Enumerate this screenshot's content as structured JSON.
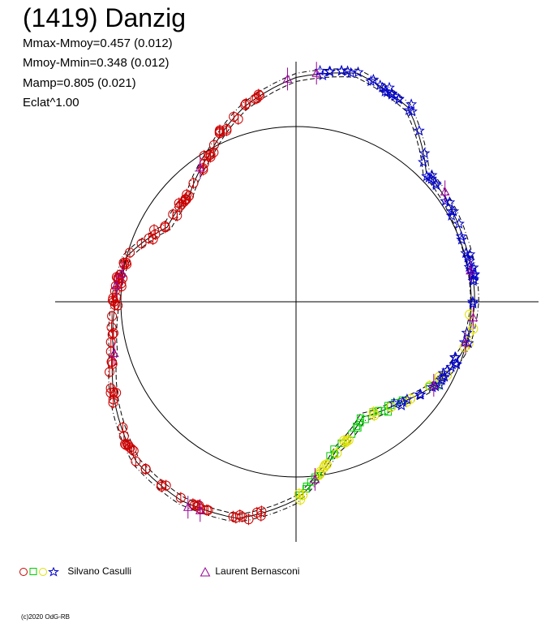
{
  "title": "(1419) Danzig",
  "stats": [
    "Mmax-Mmoy=0.457 (0.012)",
    "Mmoy-Mmin=0.348 (0.012)",
    "Mamp=0.805 (0.021)",
    "Eclat^1.00"
  ],
  "legend": [
    {
      "label": "Silvano Casulli",
      "symbols": [
        "circle",
        "square",
        "circle",
        "star"
      ],
      "colors": [
        "#cc0000",
        "#00cc00",
        "#e0e000",
        "#0000cc"
      ]
    },
    {
      "label": "Laurent Bernasconi",
      "symbols": [
        "triangle"
      ],
      "colors": [
        "#990099"
      ]
    }
  ],
  "copyright": "(c)2020 OdG-RB",
  "chart_data": {
    "type": "scatter",
    "coordinate_system": "polar",
    "angle_unit": "rotational phase (0-1)",
    "radius_unit": "magnitude (reference circle r = 1)",
    "reference_radius": 1.0,
    "series": [
      {
        "observer": "Silvano Casulli",
        "marker": "circle",
        "color": "#cc0000",
        "phase_range": [
          0.27,
          0.72
        ]
      },
      {
        "observer": "Silvano Casulli",
        "marker": "square",
        "color": "#00cc00",
        "phase_range": [
          0.02,
          0.26
        ]
      },
      {
        "observer": "Silvano Casulli",
        "marker": "circle",
        "color": "#e0e000",
        "phase_range": [
          0.72,
          0.98
        ]
      },
      {
        "observer": "Silvano Casulli",
        "marker": "star",
        "color": "#0000cc",
        "phase_range": [
          0.8,
          1.25
        ]
      },
      {
        "observer": "Laurent Bernasconi",
        "marker": "triangle",
        "color": "#990099",
        "phase_range": [
          0.0,
          1.0
        ]
      }
    ]
  }
}
